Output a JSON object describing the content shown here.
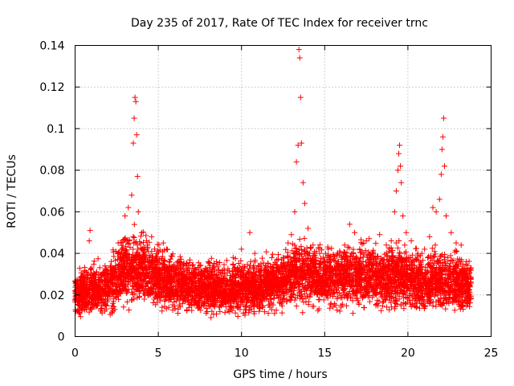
{
  "chart_data": {
    "type": "scatter",
    "title": "Day 235 of 2017, Rate Of TEC Index for receiver trnc",
    "xlabel": "GPS time / hours",
    "ylabel": "ROTI / TECUs",
    "xlim": [
      0,
      25
    ],
    "ylim": [
      0,
      0.14
    ],
    "x_ticks": [
      0,
      5,
      10,
      15,
      20,
      25
    ],
    "y_ticks": [
      0,
      0.02,
      0.04,
      0.06,
      0.08,
      0.1,
      0.12,
      0.14
    ],
    "x_tick_labels": [
      "0",
      "5",
      "10",
      "15",
      "20",
      "25"
    ],
    "y_tick_labels": [
      "0",
      "0.02",
      "0.04",
      "0.06",
      "0.08",
      "0.1",
      "0.12",
      "0.14"
    ],
    "grid": true,
    "marker": "+",
    "color": "#ff0000",
    "series": [
      {
        "name": "ROTI",
        "points": [
          [
            0.1,
            0.018
          ],
          [
            0.3,
            0.024
          ],
          [
            0.5,
            0.029
          ],
          [
            0.7,
            0.022
          ],
          [
            0.85,
            0.046
          ],
          [
            0.9,
            0.051
          ],
          [
            1.0,
            0.033
          ],
          [
            1.2,
            0.027
          ],
          [
            1.5,
            0.02
          ],
          [
            1.8,
            0.015
          ],
          [
            2.1,
            0.024
          ],
          [
            2.4,
            0.031
          ],
          [
            2.7,
            0.038
          ],
          [
            3.0,
            0.058
          ],
          [
            3.2,
            0.062
          ],
          [
            3.4,
            0.068
          ],
          [
            3.5,
            0.093
          ],
          [
            3.55,
            0.105
          ],
          [
            3.6,
            0.115
          ],
          [
            3.65,
            0.113
          ],
          [
            3.7,
            0.097
          ],
          [
            3.75,
            0.077
          ],
          [
            3.8,
            0.06
          ],
          [
            4.0,
            0.05
          ],
          [
            4.3,
            0.046
          ],
          [
            4.6,
            0.048
          ],
          [
            5.0,
            0.03
          ],
          [
            5.3,
            0.045
          ],
          [
            5.5,
            0.042
          ],
          [
            5.8,
            0.03
          ],
          [
            6.2,
            0.025
          ],
          [
            6.6,
            0.028
          ],
          [
            7.0,
            0.031
          ],
          [
            7.5,
            0.034
          ],
          [
            8.0,
            0.029
          ],
          [
            8.5,
            0.036
          ],
          [
            9.0,
            0.03
          ],
          [
            9.5,
            0.038
          ],
          [
            10.0,
            0.042
          ],
          [
            10.5,
            0.05
          ],
          [
            10.8,
            0.04
          ],
          [
            11.2,
            0.032
          ],
          [
            11.6,
            0.035
          ],
          [
            12.0,
            0.03
          ],
          [
            12.5,
            0.038
          ],
          [
            12.8,
            0.045
          ],
          [
            13.0,
            0.049
          ],
          [
            13.2,
            0.06
          ],
          [
            13.3,
            0.084
          ],
          [
            13.4,
            0.092
          ],
          [
            13.45,
            0.138
          ],
          [
            13.5,
            0.134
          ],
          [
            13.55,
            0.115
          ],
          [
            13.6,
            0.093
          ],
          [
            13.7,
            0.074
          ],
          [
            13.8,
            0.064
          ],
          [
            14.0,
            0.052
          ],
          [
            14.3,
            0.044
          ],
          [
            14.7,
            0.04
          ],
          [
            15.0,
            0.036
          ],
          [
            15.4,
            0.032
          ],
          [
            15.8,
            0.036
          ],
          [
            16.2,
            0.044
          ],
          [
            16.5,
            0.054
          ],
          [
            16.8,
            0.05
          ],
          [
            17.1,
            0.042
          ],
          [
            17.5,
            0.046
          ],
          [
            17.9,
            0.04
          ],
          [
            18.3,
            0.049
          ],
          [
            18.7,
            0.044
          ],
          [
            19.0,
            0.046
          ],
          [
            19.2,
            0.06
          ],
          [
            19.3,
            0.07
          ],
          [
            19.4,
            0.08
          ],
          [
            19.45,
            0.088
          ],
          [
            19.5,
            0.092
          ],
          [
            19.55,
            0.082
          ],
          [
            19.6,
            0.074
          ],
          [
            19.7,
            0.058
          ],
          [
            19.9,
            0.05
          ],
          [
            20.2,
            0.046
          ],
          [
            20.6,
            0.04
          ],
          [
            21.0,
            0.042
          ],
          [
            21.3,
            0.048
          ],
          [
            21.5,
            0.062
          ],
          [
            21.7,
            0.06
          ],
          [
            21.9,
            0.066
          ],
          [
            22.0,
            0.078
          ],
          [
            22.05,
            0.09
          ],
          [
            22.1,
            0.096
          ],
          [
            22.15,
            0.105
          ],
          [
            22.2,
            0.082
          ],
          [
            22.3,
            0.058
          ],
          [
            22.6,
            0.05
          ],
          [
            22.9,
            0.045
          ],
          [
            23.2,
            0.044
          ],
          [
            23.5,
            0.036
          ],
          [
            23.8,
            0.033
          ]
        ]
      }
    ],
    "density_band": {
      "description_hours_to_range": [
        [
          0.0,
          0.008,
          0.03
        ],
        [
          1.0,
          0.006,
          0.034
        ],
        [
          2.0,
          0.006,
          0.036
        ],
        [
          3.0,
          0.01,
          0.05
        ],
        [
          4.0,
          0.01,
          0.048
        ],
        [
          5.0,
          0.008,
          0.044
        ],
        [
          6.0,
          0.008,
          0.038
        ],
        [
          7.0,
          0.008,
          0.036
        ],
        [
          8.0,
          0.008,
          0.036
        ],
        [
          9.0,
          0.008,
          0.034
        ],
        [
          10.0,
          0.008,
          0.036
        ],
        [
          11.0,
          0.008,
          0.036
        ],
        [
          12.0,
          0.008,
          0.038
        ],
        [
          13.0,
          0.01,
          0.044
        ],
        [
          14.0,
          0.01,
          0.046
        ],
        [
          15.0,
          0.01,
          0.042
        ],
        [
          16.0,
          0.01,
          0.044
        ],
        [
          17.0,
          0.01,
          0.044
        ],
        [
          18.0,
          0.008,
          0.044
        ],
        [
          19.0,
          0.008,
          0.046
        ],
        [
          20.0,
          0.008,
          0.042
        ],
        [
          21.0,
          0.008,
          0.04
        ],
        [
          22.0,
          0.008,
          0.042
        ],
        [
          23.0,
          0.008,
          0.04
        ],
        [
          23.8,
          0.008,
          0.034
        ]
      ],
      "count": 6000
    }
  }
}
